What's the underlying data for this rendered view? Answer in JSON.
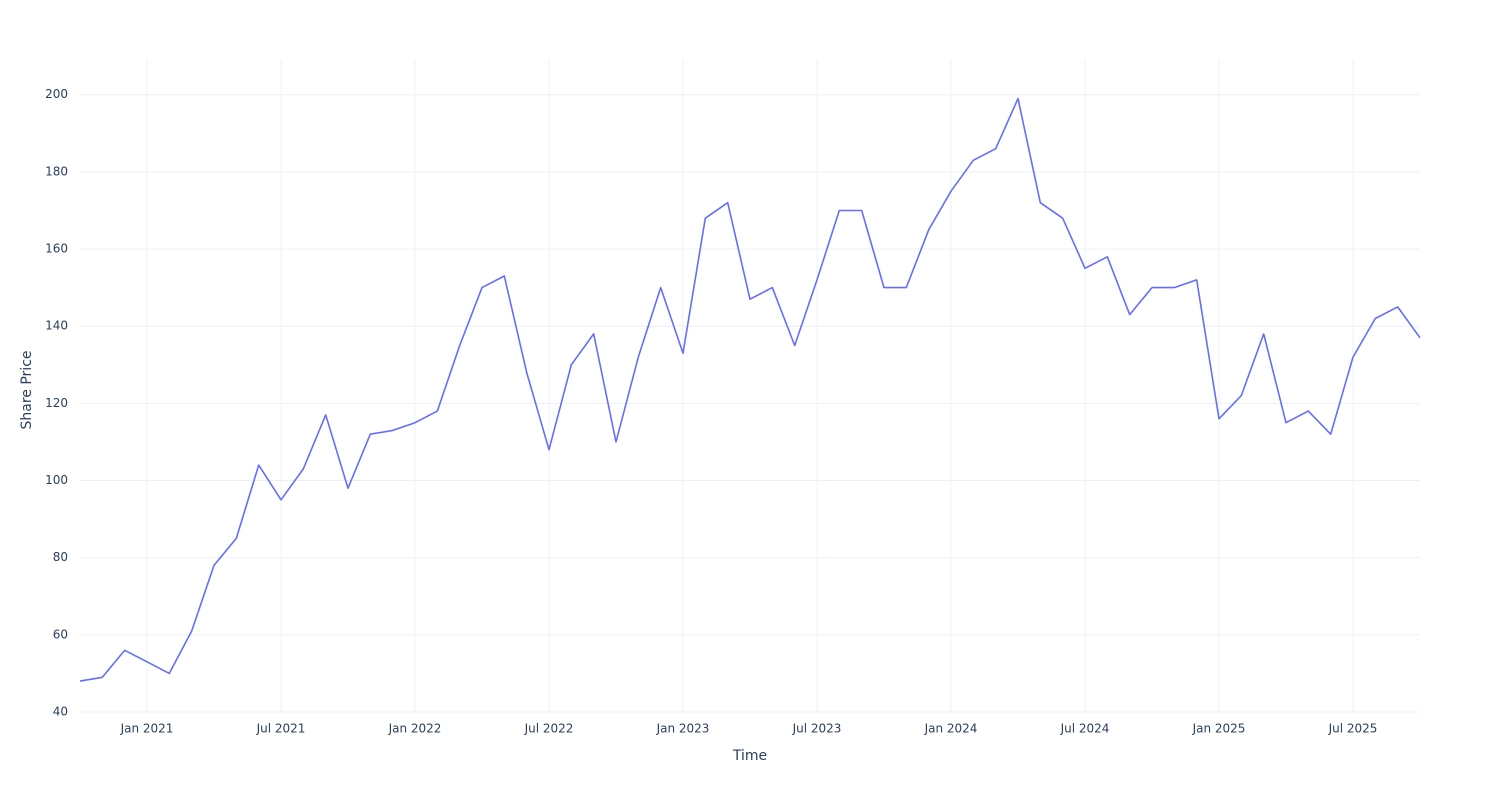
{
  "chart_data": {
    "type": "line",
    "x_label": "Time",
    "y_label": "Share Price",
    "x": [
      "2020-10",
      "2020-11",
      "2020-12",
      "2021-01",
      "2021-02",
      "2021-03",
      "2021-04",
      "2021-05",
      "2021-06",
      "2021-07",
      "2021-08",
      "2021-09",
      "2021-10",
      "2021-11",
      "2021-12",
      "2022-01",
      "2022-02",
      "2022-03",
      "2022-04",
      "2022-05",
      "2022-06",
      "2022-07",
      "2022-08",
      "2022-09",
      "2022-10",
      "2022-11",
      "2022-12",
      "2023-01",
      "2023-02",
      "2023-03",
      "2023-04",
      "2023-05",
      "2023-06",
      "2023-07",
      "2023-08",
      "2023-09",
      "2023-10",
      "2023-11",
      "2023-12",
      "2024-01",
      "2024-02",
      "2024-03",
      "2024-04",
      "2024-05",
      "2024-06",
      "2024-07",
      "2024-08",
      "2024-09",
      "2024-10",
      "2024-11",
      "2024-12",
      "2025-01",
      "2025-02",
      "2025-03",
      "2025-04",
      "2025-05",
      "2025-06",
      "2025-07",
      "2025-08",
      "2025-09",
      "2025-10"
    ],
    "values": [
      48,
      49,
      56,
      53,
      50,
      61,
      78,
      85,
      104,
      95,
      103,
      117,
      98,
      112,
      113,
      115,
      118,
      135,
      150,
      153,
      128,
      108,
      130,
      138,
      110,
      132,
      150,
      133,
      168,
      172,
      147,
      150,
      135,
      152,
      170,
      170,
      150,
      150,
      165,
      175,
      183,
      186,
      199,
      172,
      168,
      155,
      158,
      143,
      150,
      150,
      152,
      116,
      122,
      138,
      115,
      118,
      112,
      132,
      142,
      145,
      137
    ],
    "color": "#636efa",
    "xlim": [
      "2020-10",
      "2025-10"
    ],
    "xticks": [
      {
        "value": "2021-01",
        "label": "Jan 2021"
      },
      {
        "value": "2021-07",
        "label": "Jul 2021"
      },
      {
        "value": "2022-01",
        "label": "Jan 2022"
      },
      {
        "value": "2022-07",
        "label": "Jul 2022"
      },
      {
        "value": "2023-01",
        "label": "Jan 2023"
      },
      {
        "value": "2023-07",
        "label": "Jul 2023"
      },
      {
        "value": "2024-01",
        "label": "Jan 2024"
      },
      {
        "value": "2024-07",
        "label": "Jul 2024"
      },
      {
        "value": "2025-01",
        "label": "Jan 2025"
      },
      {
        "value": "2025-07",
        "label": "Jul 2025"
      }
    ],
    "ylim": [
      40,
      209
    ],
    "yticks": [
      40,
      60,
      80,
      100,
      120,
      140,
      160,
      180,
      200
    ],
    "grid": true
  }
}
